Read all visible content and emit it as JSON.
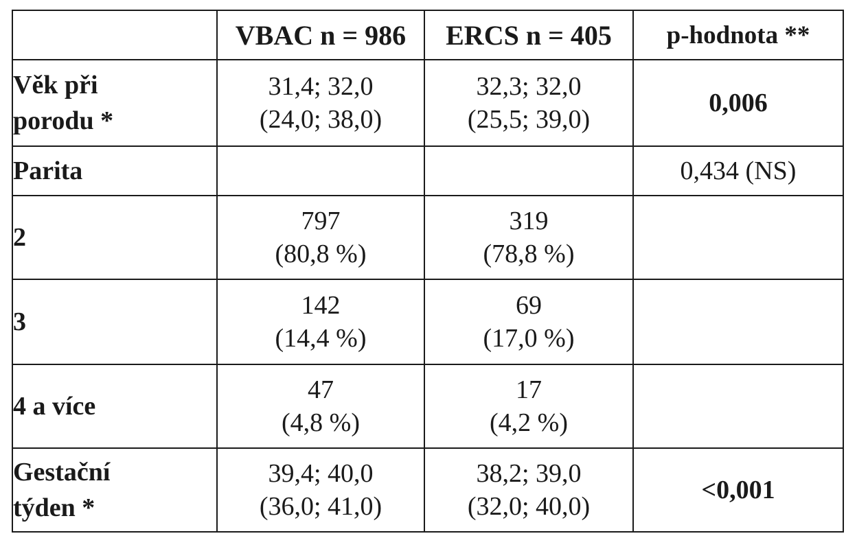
{
  "table": {
    "headers": [
      "",
      "VBAC n = 986",
      "ERCS n = 405",
      "p-hodnota **"
    ],
    "rows": [
      {
        "label": [
          "Věk při",
          "porodu *"
        ],
        "vbac": [
          "31,4; 32,0",
          "(24,0; 38,0)"
        ],
        "ercs": [
          "32,3; 32,0",
          "(25,5; 39,0)"
        ],
        "p": "0,006",
        "p_bold": true
      },
      {
        "label": [
          "Parita"
        ],
        "vbac": [],
        "ercs": [],
        "p": "0,434 (NS)",
        "p_bold": false
      },
      {
        "label": [
          "2"
        ],
        "vbac": [
          "797",
          "(80,8 %)"
        ],
        "ercs": [
          "319",
          "(78,8 %)"
        ],
        "p": ""
      },
      {
        "label": [
          "3"
        ],
        "vbac": [
          "142",
          "(14,4 %)"
        ],
        "ercs": [
          "69",
          "(17,0 %)"
        ],
        "p": ""
      },
      {
        "label": [
          "4 a více"
        ],
        "vbac": [
          "47",
          "(4,8 %)"
        ],
        "ercs": [
          "17",
          "(4,2 %)"
        ],
        "p": ""
      },
      {
        "label": [
          "Gestační",
          "týden *"
        ],
        "vbac": [
          "39,4; 40,0",
          "(36,0; 41,0)"
        ],
        "ercs": [
          "38,2; 39,0",
          "(32,0; 40,0)"
        ],
        "p": "<0,001",
        "p_bold": true
      }
    ]
  }
}
